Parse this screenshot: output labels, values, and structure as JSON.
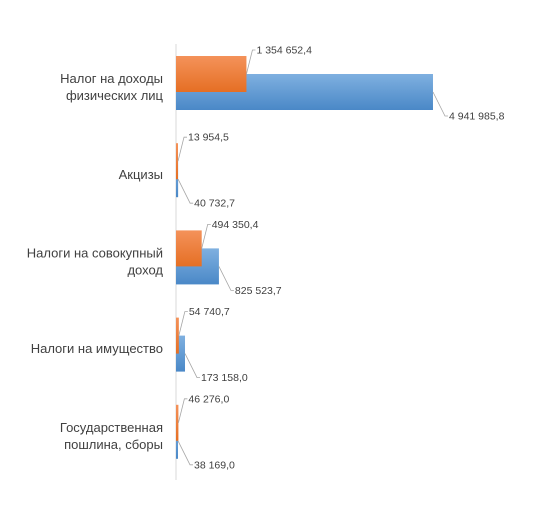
{
  "chart_data": {
    "type": "bar",
    "orientation": "horizontal",
    "categories": [
      [
        "Налог на доходы",
        "физических лиц"
      ],
      [
        "Акцизы"
      ],
      [
        "Налоги на совокупный",
        "доход"
      ],
      [
        "Налоги на имущество"
      ],
      [
        "Государственная",
        "пошлина, сборы"
      ]
    ],
    "series": [
      {
        "color": "#ed7d31",
        "values": [
          1354652.4,
          13954.5,
          494350.4,
          54740.7,
          46276.0
        ],
        "labels": [
          "1 354 652,4",
          "13 954,5",
          "494 350,4",
          "54 740,7",
          "46 276,0"
        ]
      },
      {
        "color": "#5b9bd5",
        "values": [
          4941985.8,
          40732.7,
          825523.7,
          173158.0,
          38169.0
        ],
        "labels": [
          "4 941 985,8",
          "40 732,7",
          "825 523,7",
          "173 158,0",
          "38 169,0"
        ]
      }
    ],
    "xlim": [
      0,
      5000000
    ],
    "grid": false,
    "legend": "none",
    "axis_line_color": "#d9d9d9",
    "label_text_color": "#404040",
    "leader_line_color": "#a6a6a6"
  }
}
